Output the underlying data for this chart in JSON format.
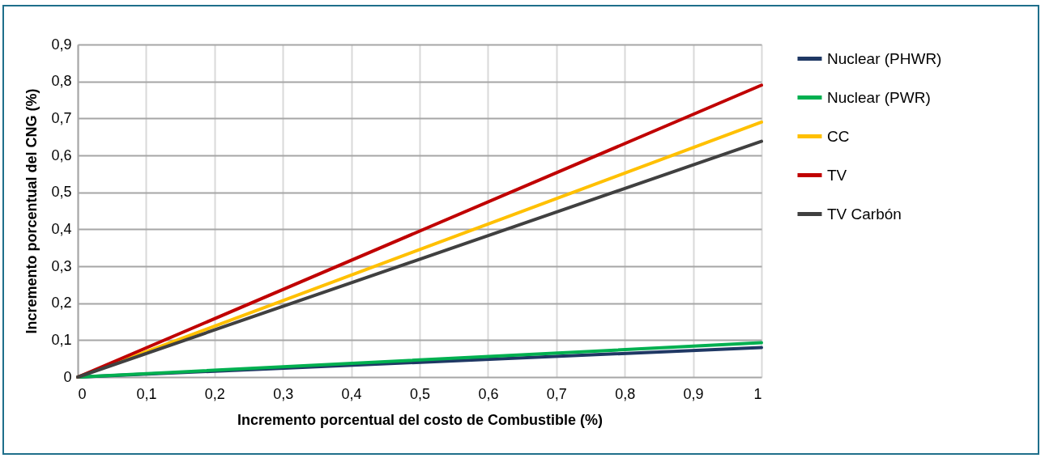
{
  "chart_data": {
    "type": "line",
    "xlabel": "Incremento porcentual del costo de Combustible (%)",
    "ylabel": "Incremento porcentual del  CNG (%)",
    "x": [
      0,
      1
    ],
    "series": [
      {
        "name": "Nuclear (PHWR)",
        "color": "#1f3864",
        "values": [
          0,
          0.08
        ]
      },
      {
        "name": "Nuclear (PWR)",
        "color": "#00b050",
        "values": [
          0,
          0.093
        ]
      },
      {
        "name": "CC",
        "color": "#ffc000",
        "values": [
          0,
          0.69
        ]
      },
      {
        "name": "TV",
        "color": "#c00000",
        "values": [
          0,
          0.79
        ]
      },
      {
        "name": "TV Carbón",
        "color": "#404040",
        "values": [
          0,
          0.638
        ]
      }
    ],
    "xlim": [
      0,
      1
    ],
    "xticks": [
      0,
      {
        "value": 0.1,
        "label": "0,1"
      },
      {
        "value": 0.2,
        "label": "0,2"
      },
      {
        "value": 0.3,
        "label": "0,3"
      },
      {
        "value": 0.4,
        "label": "0,4"
      },
      {
        "value": 0.5,
        "label": "0,5"
      },
      {
        "value": 0.6,
        "label": "0,6"
      },
      {
        "value": 0.7,
        "label": "0,7"
      },
      {
        "value": 0.8,
        "label": "0,8"
      },
      {
        "value": 0.9,
        "label": "0,9"
      },
      1
    ],
    "ylim": [
      0,
      0.9
    ],
    "yticks": [
      0,
      {
        "value": 0.1,
        "label": "0,1"
      },
      {
        "value": 0.2,
        "label": "0,2"
      },
      {
        "value": 0.3,
        "label": "0,3"
      },
      {
        "value": 0.4,
        "label": "0,4"
      },
      {
        "value": 0.5,
        "label": "0,5"
      },
      {
        "value": 0.6,
        "label": "0,6"
      },
      {
        "value": 0.7,
        "label": "0,7"
      },
      {
        "value": 0.8,
        "label": "0,8"
      },
      {
        "value": 0.9,
        "label": "0,9"
      }
    ],
    "grid": true,
    "legend": "right",
    "marker": "none",
    "line_style": "solid"
  }
}
